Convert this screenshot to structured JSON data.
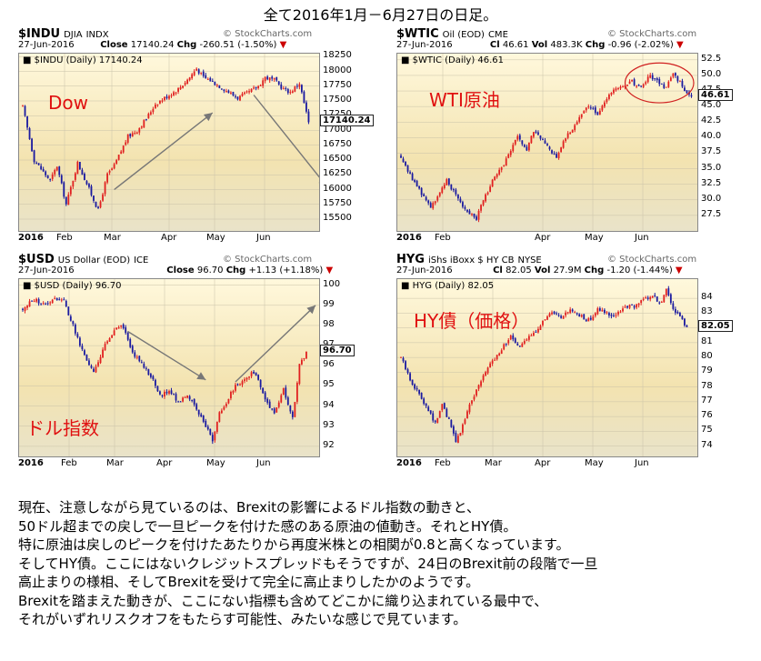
{
  "page": {
    "title": "全て2016年1月－6月27日の日足。",
    "body_lines": [
      "現在、注意しながら見ているのは、Brexitの影響によるドル指数の動きと、",
      "50ドル超までの戻しで一旦ピークを付けた感のある原油の値動き。それとHY債。",
      "特に原油は戻しのピークを付けたあたりから再度米株との相関が0.8と高くなっています。",
      "そしてHY債。ここにはないクレジットスプレッドもそうですが、24日のBrexit前の段階で一旦",
      "高止まりの様相、そしてBrexitを受けて完全に高止まりしたかのようです。",
      "Brexitを踏まえた動きが、ここにない指標も含めてどこかに織り込まれている最中で、",
      "それがいずれリスクオフをもたらす可能性、みたいな感じで見ています。"
    ]
  },
  "colors": {
    "up": "#e02020",
    "down": "#1a1aa0",
    "annot": "#e01010",
    "arrow": "#777777",
    "highlight": "#d02020"
  },
  "chart_data": [
    {
      "id": "indu",
      "type": "candlestick",
      "symbol": "$INDU",
      "name": "DJIA",
      "exchange": "INDX",
      "date": "27-Jun-2016",
      "stats": [
        [
          "Close",
          "17140.24"
        ],
        [
          "Chg",
          "-260.51 (-1.50%)"
        ]
      ],
      "watermark": "© StockCharts.com",
      "legend": "$INDU (Daily) 17140.24",
      "annotation": "Dow",
      "last": 17140.24,
      "last_label": "17140.24",
      "ylim": [
        15300,
        18300
      ],
      "yticks": [
        "18250",
        "18000",
        "17750",
        "17500",
        "17250",
        "17000",
        "16750",
        "16500",
        "16250",
        "16000",
        "15750",
        "15500"
      ],
      "xticks": [
        "2016",
        "Feb",
        "Mar",
        "Apr",
        "May",
        "Jun"
      ],
      "keypoints": [
        [
          0,
          17400
        ],
        [
          5,
          16500
        ],
        [
          12,
          16150
        ],
        [
          15,
          16400
        ],
        [
          19,
          15750
        ],
        [
          24,
          16450
        ],
        [
          28,
          16100
        ],
        [
          33,
          15650
        ],
        [
          37,
          16250
        ],
        [
          40,
          16400
        ],
        [
          46,
          16900
        ],
        [
          50,
          17000
        ],
        [
          54,
          17200
        ],
        [
          58,
          17450
        ],
        [
          64,
          17600
        ],
        [
          68,
          17700
        ],
        [
          73,
          17900
        ],
        [
          76,
          18050
        ],
        [
          79,
          17900
        ],
        [
          82,
          17850
        ],
        [
          86,
          17750
        ],
        [
          90,
          17650
        ],
        [
          94,
          17550
        ],
        [
          99,
          17650
        ],
        [
          103,
          17750
        ],
        [
          106,
          17900
        ],
        [
          110,
          17850
        ],
        [
          114,
          17700
        ],
        [
          117,
          17650
        ],
        [
          121,
          17800
        ],
        [
          124,
          17300
        ],
        [
          125,
          17140
        ]
      ],
      "trend_arrows": [
        {
          "from": [
            40,
            16000
          ],
          "to": [
            83,
            17300
          ]
        },
        {
          "from": [
            101,
            17600
          ],
          "to": [
            133,
            16050
          ]
        }
      ]
    },
    {
      "id": "wtic",
      "type": "candlestick",
      "symbol": "$WTIC",
      "name": "Oil (EOD)",
      "exchange": "CME",
      "date": "27-Jun-2016",
      "stats": [
        [
          "Cl",
          "46.61"
        ],
        [
          "Vol",
          "483.3K"
        ],
        [
          "Chg",
          "-0.96 (-2.02%)"
        ]
      ],
      "watermark": "© StockCharts.com",
      "legend": "$WTIC (Daily) 46.61",
      "annotation": "WTI原油",
      "last": 46.61,
      "last_label": "46.61",
      "ylim": [
        25,
        53.5
      ],
      "yticks": [
        "52.5",
        "50.0",
        "47.5",
        "45.0",
        "42.5",
        "40.0",
        "37.5",
        "35.0",
        "32.5",
        "30.0",
        "27.5"
      ],
      "xticks": [
        "2016",
        "Feb",
        "Apr",
        "May",
        "Jun"
      ],
      "keypoints": [
        [
          0,
          37
        ],
        [
          4,
          34
        ],
        [
          9,
          31
        ],
        [
          13,
          29
        ],
        [
          17,
          31
        ],
        [
          20,
          33
        ],
        [
          24,
          31
        ],
        [
          27,
          29
        ],
        [
          30,
          28
        ],
        [
          33,
          27
        ],
        [
          36,
          30
        ],
        [
          40,
          33
        ],
        [
          44,
          35
        ],
        [
          48,
          38
        ],
        [
          51,
          40
        ],
        [
          55,
          38
        ],
        [
          58,
          41
        ],
        [
          61,
          40
        ],
        [
          65,
          38
        ],
        [
          68,
          37
        ],
        [
          72,
          40
        ],
        [
          76,
          42
        ],
        [
          79,
          44
        ],
        [
          82,
          45
        ],
        [
          86,
          44
        ],
        [
          90,
          46
        ],
        [
          93,
          48
        ],
        [
          97,
          48
        ],
        [
          101,
          49
        ],
        [
          105,
          48
        ],
        [
          109,
          50
        ],
        [
          112,
          49
        ],
        [
          116,
          48
        ],
        [
          119,
          50
        ],
        [
          122,
          49
        ],
        [
          125,
          47
        ],
        [
          127,
          46.6
        ]
      ],
      "highlight_ellipse": {
        "center": [
          113,
          48.8
        ],
        "radius": [
          15,
          3.2
        ]
      }
    },
    {
      "id": "usd",
      "type": "candlestick",
      "symbol": "$USD",
      "name": "US Dollar (EOD)",
      "exchange": "ICE",
      "date": "27-Jun-2016",
      "stats": [
        [
          "Close",
          "96.70"
        ],
        [
          "Chg",
          "+1.13 (+1.18%)"
        ]
      ],
      "watermark": "© StockCharts.com",
      "legend": "$USD (Daily) 96.70",
      "annotation": "ドル指数",
      "last": 96.7,
      "last_label": "96.70",
      "ylim": [
        91.5,
        100.3
      ],
      "yticks": [
        "100",
        "99",
        "98",
        "97",
        "96",
        "95",
        "94",
        "93",
        "92"
      ],
      "xticks": [
        "2016",
        "Feb",
        "Mar",
        "Apr",
        "May",
        "Jun"
      ],
      "keypoints": [
        [
          0,
          98.8
        ],
        [
          5,
          99.3
        ],
        [
          10,
          99.0
        ],
        [
          14,
          99.4
        ],
        [
          18,
          99.2
        ],
        [
          22,
          98.0
        ],
        [
          25,
          97.0
        ],
        [
          28,
          96.3
        ],
        [
          31,
          95.6
        ],
        [
          35,
          96.8
        ],
        [
          39,
          97.6
        ],
        [
          43,
          98.0
        ],
        [
          46,
          97.3
        ],
        [
          49,
          96.5
        ],
        [
          53,
          96.0
        ],
        [
          57,
          95.3
        ],
        [
          60,
          94.5
        ],
        [
          64,
          94.8
        ],
        [
          68,
          94.2
        ],
        [
          72,
          94.6
        ],
        [
          76,
          93.8
        ],
        [
          80,
          93.0
        ],
        [
          83,
          92.3
        ],
        [
          86,
          93.6
        ],
        [
          89,
          94.2
        ],
        [
          93,
          95.0
        ],
        [
          97,
          95.3
        ],
        [
          100,
          95.6
        ],
        [
          103,
          95.4
        ],
        [
          106,
          94.3
        ],
        [
          110,
          93.7
        ],
        [
          114,
          94.8
        ],
        [
          118,
          93.4
        ],
        [
          121,
          96.0
        ],
        [
          124,
          96.7
        ]
      ],
      "trend_arrows": [
        {
          "from": [
            46,
            97.7
          ],
          "to": [
            80,
            95.3
          ]
        },
        {
          "from": [
            93,
            95.2
          ],
          "to": [
            128,
            99.0
          ]
        }
      ]
    },
    {
      "id": "hyg",
      "type": "candlestick",
      "symbol": "HYG",
      "name": "iShs iBoxx $ HY CB",
      "exchange": "NYSE",
      "date": "27-Jun-2016",
      "stats": [
        [
          "Cl",
          "82.05"
        ],
        [
          "Vol",
          "27.9M"
        ],
        [
          "Chg",
          "-1.20 (-1.44%)"
        ]
      ],
      "watermark": "© StockCharts.com",
      "legend": "HYG (Daily) 82.05",
      "annotation": "HY債（価格）",
      "last": 82.05,
      "last_label": "82.05",
      "ylim": [
        73.3,
        85.3
      ],
      "yticks": [
        "84",
        "83",
        "82",
        "81",
        "80",
        "79",
        "78",
        "77",
        "76",
        "75",
        "74"
      ],
      "xticks": [
        "2016",
        "Feb",
        "Mar",
        "Apr",
        "May",
        "Jun"
      ],
      "keypoints": [
        [
          0,
          80
        ],
        [
          4,
          78.5
        ],
        [
          8,
          77.5
        ],
        [
          12,
          76.5
        ],
        [
          15,
          75.5
        ],
        [
          18,
          76.8
        ],
        [
          21,
          75.7
        ],
        [
          24,
          74.3
        ],
        [
          27,
          75.4
        ],
        [
          30,
          76.8
        ],
        [
          33,
          77.8
        ],
        [
          36,
          78.8
        ],
        [
          39,
          79.5
        ],
        [
          42,
          80.2
        ],
        [
          45,
          80.8
        ],
        [
          48,
          81.4
        ],
        [
          51,
          80.7
        ],
        [
          54,
          81.0
        ],
        [
          58,
          81.7
        ],
        [
          62,
          82.4
        ],
        [
          66,
          83.0
        ],
        [
          70,
          82.6
        ],
        [
          74,
          83.2
        ],
        [
          78,
          82.8
        ],
        [
          82,
          82.5
        ],
        [
          86,
          83.2
        ],
        [
          90,
          83.0
        ],
        [
          94,
          82.8
        ],
        [
          98,
          83.5
        ],
        [
          102,
          83.4
        ],
        [
          106,
          83.9
        ],
        [
          110,
          84.2
        ],
        [
          113,
          83.6
        ],
        [
          116,
          84.5
        ],
        [
          119,
          83.3
        ],
        [
          122,
          82.7
        ],
        [
          125,
          82.05
        ]
      ]
    }
  ]
}
